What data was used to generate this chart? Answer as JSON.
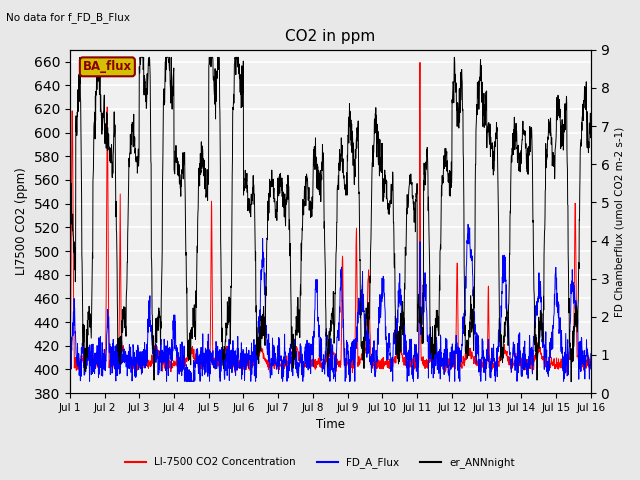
{
  "title": "CO2 in ppm",
  "top_left_text": "No data for f_FD_B_Flux",
  "ba_flux_label": "BA_flux",
  "ylabel_left": "LI7500 CO2 (ppm)",
  "ylabel_right": "FD Chamberflux (umol CO2 m-2 s-1)",
  "xlabel": "Time",
  "ylim_left": [
    380,
    670
  ],
  "ylim_right": [
    0.0,
    9.0
  ],
  "yticks_left": [
    380,
    400,
    420,
    440,
    460,
    480,
    500,
    520,
    540,
    560,
    580,
    600,
    620,
    640,
    660
  ],
  "yticks_right": [
    0.0,
    1.0,
    2.0,
    3.0,
    4.0,
    5.0,
    6.0,
    7.0,
    8.0,
    9.0
  ],
  "xticklabels": [
    "Jul 1",
    "Jul 2",
    "Jul 3",
    "Jul 4",
    "Jul 5",
    "Jul 6",
    "Jul 7",
    "Jul 8",
    "Jul 9",
    "Jul 10",
    "Jul 11",
    "Jul 12",
    "Jul 13",
    "Jul 14",
    "Jul 15",
    "Jul 16"
  ],
  "legend_labels": [
    "LI-7500 CO2 Concentration",
    "FD_A_Flux",
    "er_ANNnight"
  ],
  "legend_colors": [
    "red",
    "blue",
    "black"
  ],
  "bg_color": "#e8e8e8",
  "plot_bg_color": "#f0f0f0",
  "grid_color": "white",
  "n_points": 2160
}
